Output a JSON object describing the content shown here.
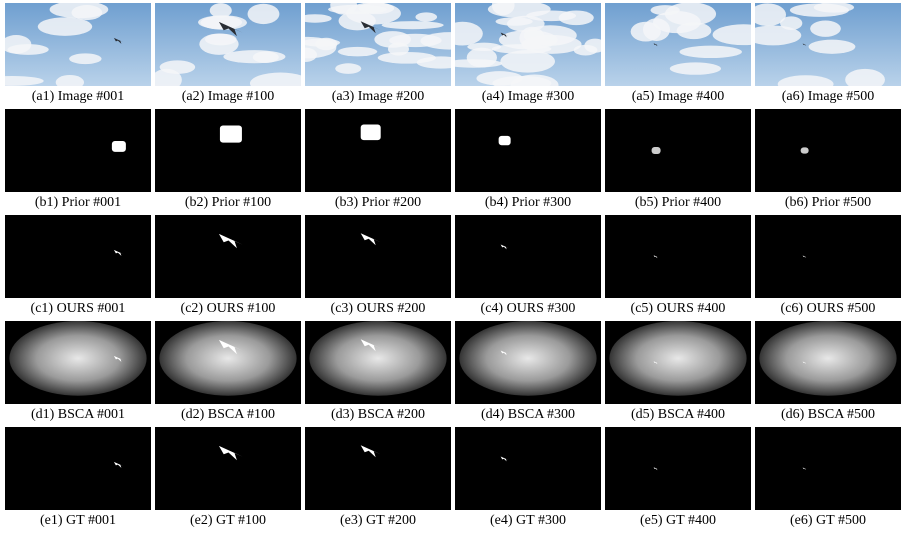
{
  "rows": [
    {
      "captions": [
        "(a1) Image #001",
        "(a2) Image #100",
        "(a3) Image #200",
        "(a4) Image #300",
        "(a5) Image #400",
        "(a6) Image #500"
      ]
    },
    {
      "captions": [
        "(b1) Prior #001",
        "(b2) Prior #100",
        "(b3) Prior #200",
        "(b4) Prior #300",
        "(b5) Prior #400",
        "(b6) Prior #500"
      ]
    },
    {
      "captions": [
        "(c1) OURS #001",
        "(c2) OURS #100",
        "(c3) OURS #200",
        "(c4) OURS #300",
        "(c5) OURS #400",
        "(c6) OURS #500"
      ]
    },
    {
      "captions": [
        "(d1) BSCA #001",
        "(d2) BSCA #100",
        "(d3) BSCA #200",
        "(d4) BSCA #300",
        "(d5) BSCA #400",
        "(d6) BSCA #500"
      ]
    },
    {
      "captions": [
        "(e1) GT #001",
        "(e2) GT #100",
        "(e3) GT #200",
        "(e4) GT #300",
        "(e5) GT #400",
        "(e6) GT #500"
      ]
    }
  ]
}
